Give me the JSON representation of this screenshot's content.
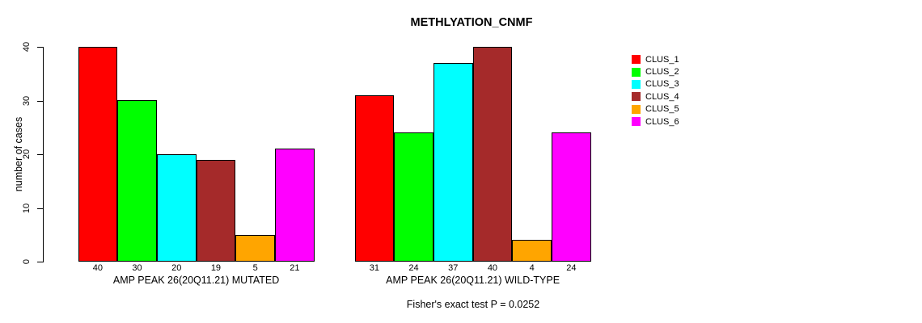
{
  "page": {
    "title": "METHLYATION_CNMF",
    "footer": "Fisher's exact test P = 0.0252"
  },
  "chart_data": {
    "type": "bar",
    "title": "METHLYATION_CNMF",
    "xlabel": "",
    "ylabel": "number of cases",
    "ylim": [
      0,
      40
    ],
    "yticks": [
      0,
      10,
      20,
      30,
      40
    ],
    "grid": false,
    "legend_position": "right",
    "bar_outline_color": "#000000",
    "categories": [
      "AMP PEAK 26(20Q11.21) MUTATED",
      "AMP PEAK 26(20Q11.21) WILD-TYPE"
    ],
    "series": [
      {
        "name": "CLUS_1",
        "color": "#FF0000",
        "values": [
          40,
          31
        ]
      },
      {
        "name": "CLUS_2",
        "color": "#00FF00",
        "values": [
          30,
          24
        ]
      },
      {
        "name": "CLUS_3",
        "color": "#00FFFF",
        "values": [
          20,
          37
        ]
      },
      {
        "name": "CLUS_4",
        "color": "#A52A2A",
        "values": [
          19,
          40
        ]
      },
      {
        "name": "CLUS_5",
        "color": "#FFA500",
        "values": [
          5,
          4
        ]
      },
      {
        "name": "CLUS_6",
        "color": "#FF00FF",
        "values": [
          21,
          24
        ]
      }
    ],
    "annotation": "Fisher's exact test P = 0.0252"
  }
}
